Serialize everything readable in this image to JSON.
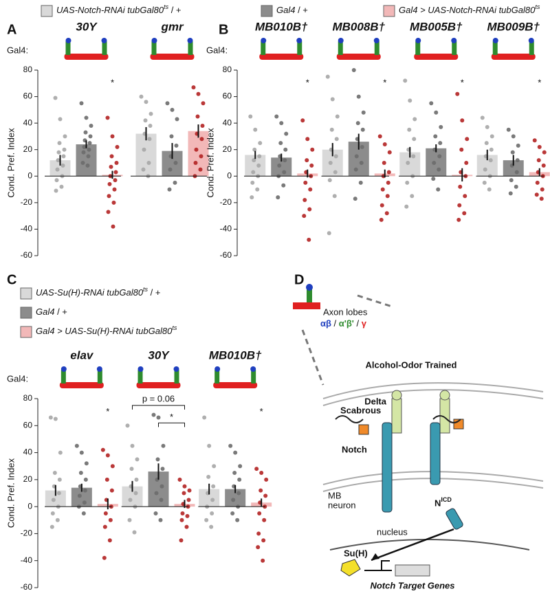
{
  "legend": [
    {
      "color": "#d9d9d9",
      "parts": [
        {
          "text": "UAS-Notch-RNAi tubGal80",
          "style": "italic"
        },
        {
          "text": "ts",
          "style": "sup"
        },
        {
          "text": " / +"
        }
      ]
    },
    {
      "color": "#8c8c8c",
      "parts": [
        {
          "text": "Gal4",
          "style": "italic"
        },
        {
          "text": " / +"
        }
      ]
    },
    {
      "color": "#f2b8b8",
      "parts": [
        {
          "text": "Gal4 > UAS-Notch-RNAi tubGal80",
          "style": "italic"
        },
        {
          "text": "ts",
          "style": "sup"
        }
      ]
    }
  ],
  "chart_data": [
    {
      "type": "bar",
      "panel": "A",
      "gal4_label": "Gal4:",
      "ylabel": "Cond. Pref. Index",
      "ylim": [
        -60,
        80
      ],
      "yticks": [
        -60,
        -40,
        -20,
        0,
        20,
        40,
        60,
        80
      ],
      "bar_colors": [
        "#d9d9d9",
        "#8c8c8c",
        "#f2b8b8"
      ],
      "dot_colors": [
        "#a6a6a6",
        "#6b6b6b",
        "#b22222"
      ],
      "groups": [
        {
          "label": "30Y",
          "means": [
            12,
            24,
            1
          ],
          "errors": [
            4,
            3,
            3
          ],
          "annotation": "*",
          "points": [
            [
              59,
              43,
              30,
              25,
              20,
              18,
              15,
              12,
              8,
              5,
              0,
              -3,
              -8,
              -11
            ],
            [
              55,
              44,
              38,
              33,
              30,
              27,
              25,
              22,
              20,
              18,
              15,
              10,
              8
            ],
            [
              44,
              30,
              22,
              15,
              10,
              7,
              3,
              0,
              -3,
              -6,
              -10,
              -15,
              -20,
              -27,
              -38
            ]
          ]
        },
        {
          "label": "gmr",
          "means": [
            32,
            19,
            34
          ],
          "errors": [
            5,
            6,
            5
          ],
          "points": [
            [
              60,
              56,
              47,
              42,
              38,
              32,
              28,
              20,
              10,
              5,
              0
            ],
            [
              55,
              50,
              43,
              30,
              23,
              15,
              10,
              5,
              -5,
              -10
            ],
            [
              67,
              62,
              55,
              45,
              38,
              32,
              28,
              20,
              15,
              10,
              5,
              0
            ]
          ]
        }
      ]
    },
    {
      "type": "bar",
      "panel": "B",
      "gal4_label": "Gal4:",
      "ylabel": "Cond. Pref. Index",
      "ylim": [
        -60,
        80
      ],
      "yticks": [
        -60,
        -40,
        -20,
        0,
        20,
        40,
        60,
        80
      ],
      "bar_colors": [
        "#d9d9d9",
        "#8c8c8c",
        "#f2b8b8"
      ],
      "dot_colors": [
        "#a6a6a6",
        "#6b6b6b",
        "#b22222"
      ],
      "groups": [
        {
          "label": "MB010B†",
          "means": [
            16,
            14,
            2
          ],
          "errors": [
            3,
            3,
            3
          ],
          "annotation": "*",
          "points": [
            [
              45,
              35,
              25,
              20,
              15,
              12,
              8,
              3,
              0,
              -5,
              -10,
              -16
            ],
            [
              45,
              40,
              32,
              25,
              20,
              15,
              12,
              8,
              3,
              0,
              -7,
              -16
            ],
            [
              42,
              28,
              20,
              12,
              8,
              3,
              0,
              -5,
              -10,
              -18,
              -25,
              -30,
              -48
            ]
          ]
        },
        {
          "label": "MB008B†",
          "means": [
            20,
            26,
            2
          ],
          "errors": [
            5,
            6,
            3
          ],
          "annotation": "*",
          "points": [
            [
              75,
              58,
              45,
              35,
              28,
              20,
              15,
              10,
              3,
              -3,
              -15,
              -43
            ],
            [
              80,
              60,
              48,
              40,
              35,
              28,
              22,
              15,
              10,
              5,
              -5,
              -17
            ],
            [
              30,
              24,
              18,
              10,
              3,
              0,
              -5,
              -10,
              -15,
              -22,
              -28,
              -33
            ]
          ]
        },
        {
          "label": "MB005B†",
          "means": [
            18,
            21,
            1
          ],
          "errors": [
            4,
            3,
            5
          ],
          "annotation": "*",
          "points": [
            [
              72,
              57,
              43,
              35,
              28,
              20,
              15,
              10,
              0,
              -5,
              -15,
              -23
            ],
            [
              55,
              48,
              37,
              30,
              25,
              20,
              15,
              10,
              5,
              -2,
              -10
            ],
            [
              62,
              42,
              28,
              20,
              10,
              3,
              0,
              -8,
              -15,
              -22,
              -28,
              -33
            ]
          ]
        },
        {
          "label": "MB009B†",
          "means": [
            16,
            12,
            3
          ],
          "errors": [
            4,
            4,
            3
          ],
          "annotation": "*",
          "points": [
            [
              44,
              37,
              30,
              25,
              20,
              15,
              12,
              5,
              0,
              -5,
              -10
            ],
            [
              35,
              30,
              23,
              18,
              12,
              8,
              3,
              -3,
              -8,
              -13
            ],
            [
              27,
              22,
              18,
              12,
              8,
              3,
              0,
              -5,
              -10,
              -14,
              -17
            ]
          ]
        }
      ]
    },
    {
      "type": "bar",
      "panel": "C",
      "gal4_label": "Gal4:",
      "ylabel": "Cond. Pref. Index",
      "ylim": [
        -60,
        80
      ],
      "yticks": [
        -60,
        -40,
        -20,
        0,
        20,
        40,
        60,
        80
      ],
      "bar_colors": [
        "#d9d9d9",
        "#8c8c8c",
        "#f2b8b8"
      ],
      "dot_colors": [
        "#a6a6a6",
        "#6b6b6b",
        "#b22222"
      ],
      "legend": [
        {
          "color": "#d9d9d9",
          "parts": [
            {
              "text": "UAS-Su(H)-RNAi tubGal80",
              "style": "italic"
            },
            {
              "text": "ts",
              "style": "sup"
            },
            {
              "text": " / +"
            }
          ]
        },
        {
          "color": "#8c8c8c",
          "parts": [
            {
              "text": "Gal4",
              "style": "italic"
            },
            {
              "text": " / +"
            }
          ]
        },
        {
          "color": "#f2b8b8",
          "parts": [
            {
              "text": "Gal4 > UAS-Su(H)-RNAi tubGal80",
              "style": "italic"
            },
            {
              "text": "ts",
              "style": "sup"
            }
          ]
        }
      ],
      "groups": [
        {
          "label": "elav",
          "means": [
            12,
            14,
            2
          ],
          "errors": [
            4,
            3,
            4
          ],
          "annotation": "*",
          "points": [
            [
              66,
              65,
              40,
              25,
              20,
              15,
              10,
              5,
              0,
              -5,
              -10,
              -15
            ],
            [
              45,
              40,
              32,
              25,
              20,
              15,
              12,
              8,
              3,
              0,
              -5
            ],
            [
              42,
              38,
              30,
              20,
              12,
              5,
              0,
              -5,
              -10,
              -15,
              -25,
              -38
            ]
          ]
        },
        {
          "label": "30Y",
          "means": [
            15,
            26,
            2
          ],
          "errors": [
            4,
            6,
            3
          ],
          "brackets": [
            "p = 0.06",
            "*"
          ],
          "points": [
            [
              60,
              45,
              35,
              28,
              20,
              15,
              10,
              5,
              0,
              -10,
              -19
            ],
            [
              68,
              66,
              45,
              35,
              28,
              20,
              15,
              10,
              5,
              -5,
              -10
            ],
            [
              20,
              15,
              12,
              10,
              5,
              2,
              0,
              -5,
              -7,
              -10,
              -15,
              -25
            ]
          ]
        },
        {
          "label": "MB010B†",
          "means": [
            13,
            13,
            3
          ],
          "errors": [
            4,
            3,
            3
          ],
          "annotation": "*",
          "points": [
            [
              66,
              45,
              30,
              22,
              15,
              10,
              5,
              0,
              -5,
              -10,
              -15
            ],
            [
              45,
              40,
              30,
              25,
              20,
              15,
              10,
              5,
              0,
              -5,
              -10
            ],
            [
              28,
              25,
              20,
              12,
              8,
              3,
              0,
              -5,
              -10,
              -20,
              -25,
              -30,
              -40
            ]
          ]
        }
      ]
    }
  ],
  "diagram": {
    "panel": "D",
    "lobes_label": "Axon lobes",
    "lobes": [
      {
        "text": "αβ",
        "color": "#1f3fbf"
      },
      {
        "text": " / "
      },
      {
        "text": "α'β'",
        "color": "#2e8b2e"
      },
      {
        "text": " / "
      },
      {
        "text": "γ",
        "color": "#e02020"
      }
    ],
    "title": "Alcohol-Odor Trained",
    "delta": "Delta",
    "scabrous": "Scabrous",
    "notch": "Notch",
    "mb": "MB",
    "neuron": "neuron",
    "nicd": "N",
    "nicd_sup": "ICD",
    "nucleus": "nucleus",
    "suh": "Su(H)",
    "target": "Notch Target Genes"
  }
}
